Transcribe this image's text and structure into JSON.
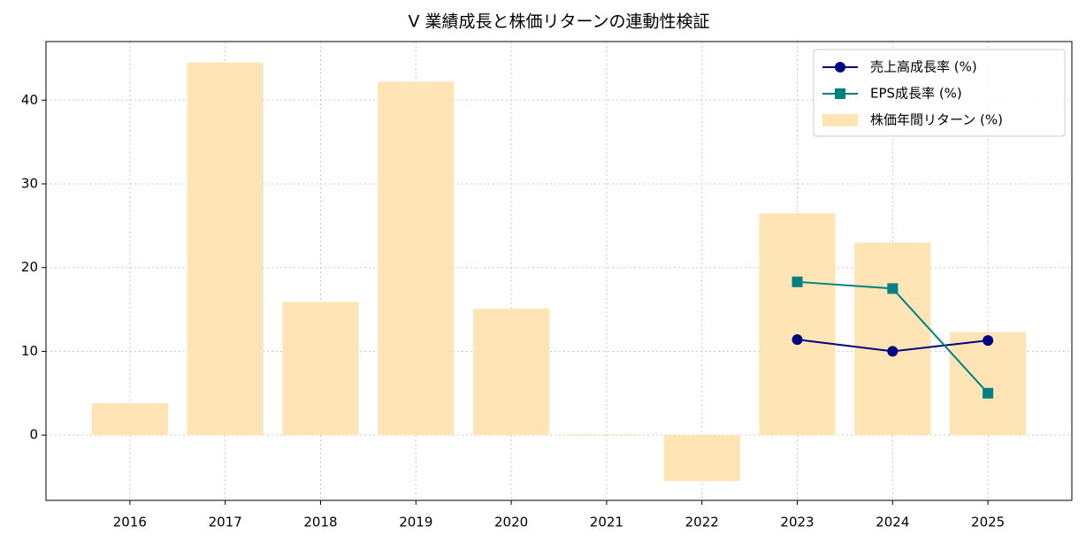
{
  "chart_data": {
    "type": "combo",
    "title": "V 業績成長と株価リターンの連動性検証",
    "categories": [
      "2016",
      "2017",
      "2018",
      "2019",
      "2020",
      "2021",
      "2022",
      "2023",
      "2024",
      "2025"
    ],
    "series": [
      {
        "name": "売上高成長率 (%)",
        "type": "line",
        "marker": "circle",
        "color": "#000080",
        "values": [
          null,
          null,
          null,
          null,
          null,
          null,
          null,
          11.4,
          10.0,
          11.3
        ]
      },
      {
        "name": "EPS成長率 (%)",
        "type": "line",
        "marker": "square",
        "color": "#008080",
        "values": [
          null,
          null,
          null,
          null,
          null,
          null,
          null,
          18.3,
          17.5,
          5.0
        ]
      },
      {
        "name": "株価年間リターン (%)",
        "type": "bar",
        "color": "#ffe4b5",
        "values": [
          3.8,
          44.5,
          15.9,
          42.2,
          15.1,
          0.1,
          -5.5,
          26.5,
          23.0,
          12.3
        ]
      }
    ],
    "ylim": [
      -7.8,
      47
    ],
    "yticks": [
      0,
      10,
      20,
      30,
      40
    ],
    "grid": true,
    "legend": "upper-right"
  }
}
